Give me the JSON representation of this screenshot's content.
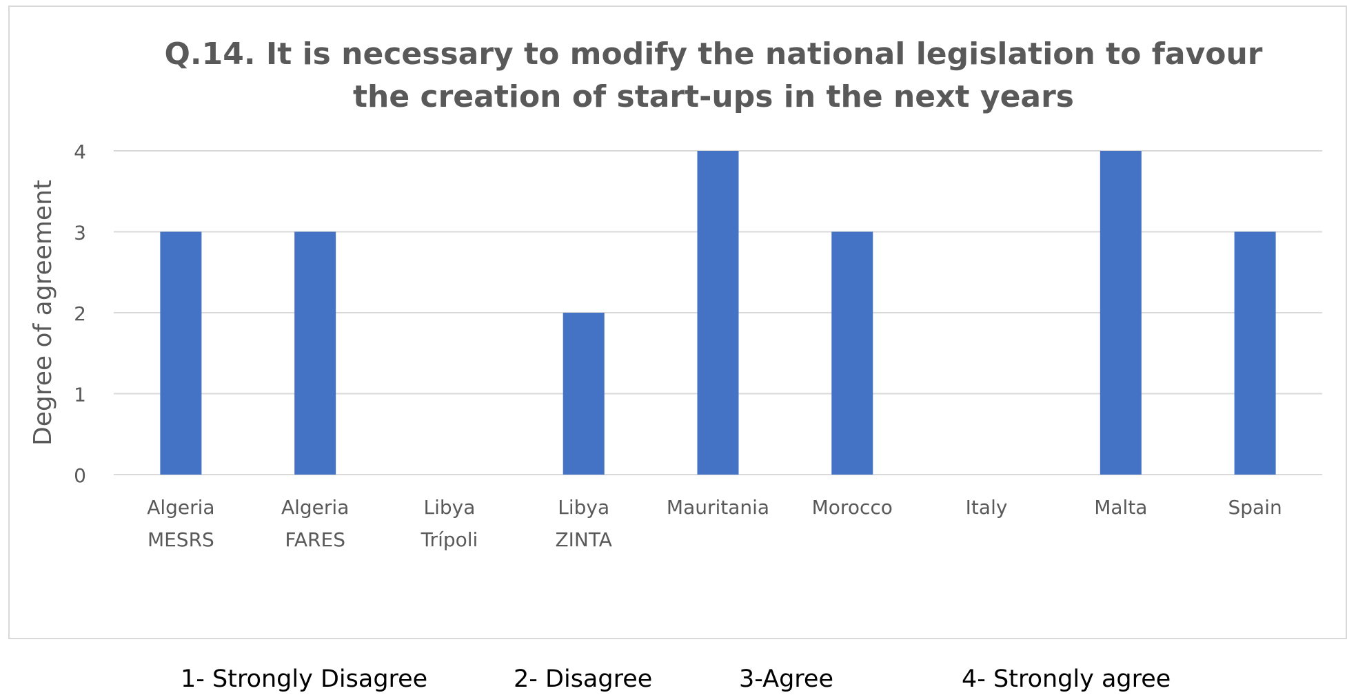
{
  "chart_data": {
    "type": "bar",
    "title": "Q.14.   It is necessary to modify the national legislation to favour\nthe creation of start-ups in the next years",
    "ylabel": "Degree of agreement",
    "xlabel": "",
    "ylim": [
      0,
      4
    ],
    "yticks": [
      "0",
      "1",
      "2",
      "3",
      "4"
    ],
    "categories": [
      {
        "line1": "Algeria",
        "line2": "MESRS"
      },
      {
        "line1": "Algeria",
        "line2": "FARES"
      },
      {
        "line1": "Libya",
        "line2": "Trípoli"
      },
      {
        "line1": "Libya",
        "line2": "ZINTA"
      },
      {
        "line1": "Mauritania",
        "line2": ""
      },
      {
        "line1": "Morocco",
        "line2": ""
      },
      {
        "line1": "Italy",
        "line2": ""
      },
      {
        "line1": "Malta",
        "line2": ""
      },
      {
        "line1": "Spain",
        "line2": ""
      }
    ],
    "values": [
      3,
      3,
      0,
      2,
      4,
      3,
      0,
      4,
      3
    ],
    "grid": true,
    "bar_color": "#4472c4",
    "grid_color": "#d9d9d9",
    "text_color": "#595959"
  },
  "legend_note": {
    "items": [
      "1- Strongly Disagree",
      "2- Disagree",
      "3-Agree",
      "4- Strongly agree"
    ]
  }
}
